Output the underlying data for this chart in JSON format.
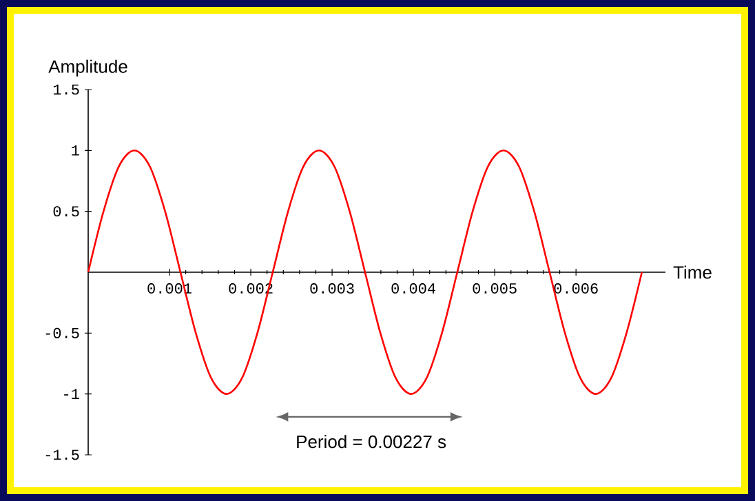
{
  "chart_data": {
    "type": "line",
    "xlabel": "Time",
    "ylabel": "Amplitude",
    "x": [
      0,
      0.000189,
      0.000378,
      0.000568,
      0.000757,
      0.000946,
      0.001135,
      0.001324,
      0.001513,
      0.001703,
      0.001892,
      0.002081,
      0.00227,
      0.002459,
      0.002648,
      0.002838,
      0.003027,
      0.003216,
      0.003405,
      0.003594,
      0.003783,
      0.003973,
      0.004162,
      0.004351,
      0.00454,
      0.004729,
      0.004918,
      0.005108,
      0.005297,
      0.005486,
      0.005675,
      0.005864,
      0.006053,
      0.006243,
      0.006432,
      0.006621,
      0.00681
    ],
    "series": [
      {
        "color": "#ff0000",
        "values": [
          0,
          0.5,
          0.87,
          1,
          0.87,
          0.5,
          0,
          -0.5,
          -0.87,
          -1,
          -0.87,
          -0.5,
          0,
          0.5,
          0.87,
          1,
          0.87,
          0.5,
          0,
          -0.5,
          -0.87,
          -1,
          -0.87,
          -0.5,
          0,
          0.5,
          0.87,
          1,
          0.87,
          0.5,
          0,
          -0.5,
          -0.87,
          -1,
          -0.87,
          -0.5,
          0
        ]
      }
    ],
    "xlim": [
      0,
      0.0071
    ],
    "ylim": [
      -1.5,
      1.5
    ],
    "xticks": [
      0.001,
      0.002,
      0.003,
      0.004,
      0.005,
      0.006
    ],
    "yticks": [
      -1.5,
      -1,
      -0.5,
      0.5,
      1,
      1.5
    ],
    "annotations": [
      "Period = 0.00227 s"
    ]
  }
}
